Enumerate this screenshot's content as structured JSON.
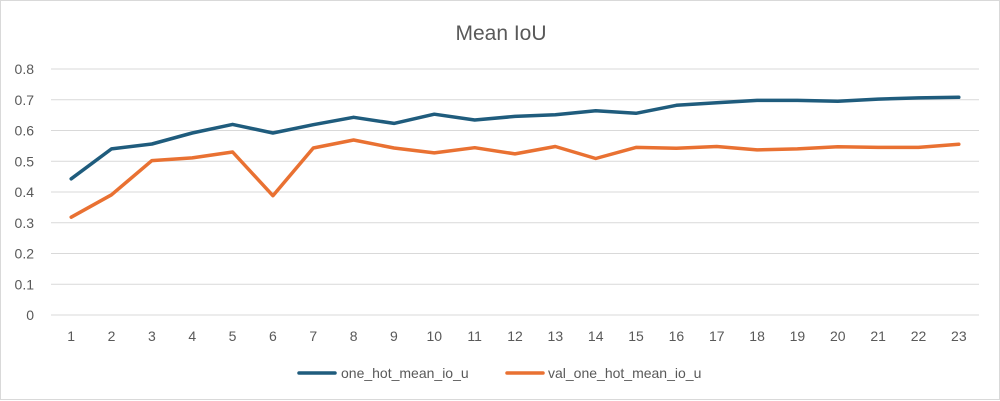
{
  "chart_data": {
    "type": "line",
    "title": "Mean IoU",
    "xlabel": "",
    "ylabel": "",
    "x": [
      1,
      2,
      3,
      4,
      5,
      6,
      7,
      8,
      9,
      10,
      11,
      12,
      13,
      14,
      15,
      16,
      17,
      18,
      19,
      20,
      21,
      22,
      23
    ],
    "ylim": [
      0,
      0.8
    ],
    "yticks": [
      0,
      0.1,
      0.2,
      0.3,
      0.4,
      0.5,
      0.6,
      0.7,
      0.8
    ],
    "grid": true,
    "legend_position": "bottom",
    "series": [
      {
        "name": "one_hot_mean_io_u",
        "color": "#1f5c7d",
        "values": [
          0.443,
          0.54,
          0.556,
          0.592,
          0.62,
          0.592,
          0.619,
          0.643,
          0.623,
          0.653,
          0.634,
          0.646,
          0.651,
          0.664,
          0.656,
          0.682,
          0.69,
          0.698,
          0.698,
          0.695,
          0.702,
          0.706,
          0.708
        ]
      },
      {
        "name": "val_one_hot_mean_io_u",
        "color": "#e97132",
        "values": [
          0.318,
          0.391,
          0.502,
          0.511,
          0.53,
          0.388,
          0.543,
          0.569,
          0.543,
          0.527,
          0.544,
          0.524,
          0.548,
          0.509,
          0.545,
          0.542,
          0.548,
          0.537,
          0.54,
          0.547,
          0.545,
          0.545,
          0.555
        ]
      }
    ]
  }
}
